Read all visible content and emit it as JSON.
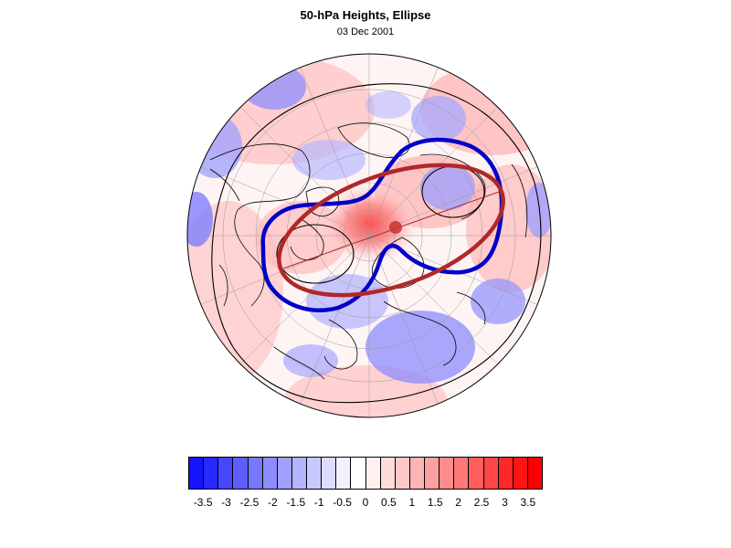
{
  "header": {
    "title": "50-hPa Heights, Ellipse",
    "subtitle": "03 Dec 2001"
  },
  "map": {
    "projection": "north-polar-stereographic",
    "field": "50-hPa height anomaly",
    "contour_colors": {
      "vortex_contour": "#0000c8",
      "fitted_ellipse": "#b02828",
      "coastline": "#000000"
    }
  },
  "colorbar": {
    "colors": [
      "#1414ff",
      "#2828ff",
      "#4646ff",
      "#5e5eff",
      "#7878ff",
      "#8c8cff",
      "#a0a0ff",
      "#b4b4ff",
      "#c8c8ff",
      "#dcdcff",
      "#f0f0ff",
      "#ffffff",
      "#fff0f0",
      "#ffdcdc",
      "#ffc8c8",
      "#ffb4b4",
      "#ffa0a0",
      "#ff8c8c",
      "#ff7878",
      "#ff5e5e",
      "#ff4646",
      "#ff2828",
      "#ff1414",
      "#ff0000"
    ],
    "tick_labels": [
      "-3.5",
      "-3",
      "-2.5",
      "-2",
      "-1.5",
      "-1",
      "-0.5",
      "0",
      "0.5",
      "1",
      "1.5",
      "2",
      "2.5",
      "3",
      "3.5"
    ]
  }
}
